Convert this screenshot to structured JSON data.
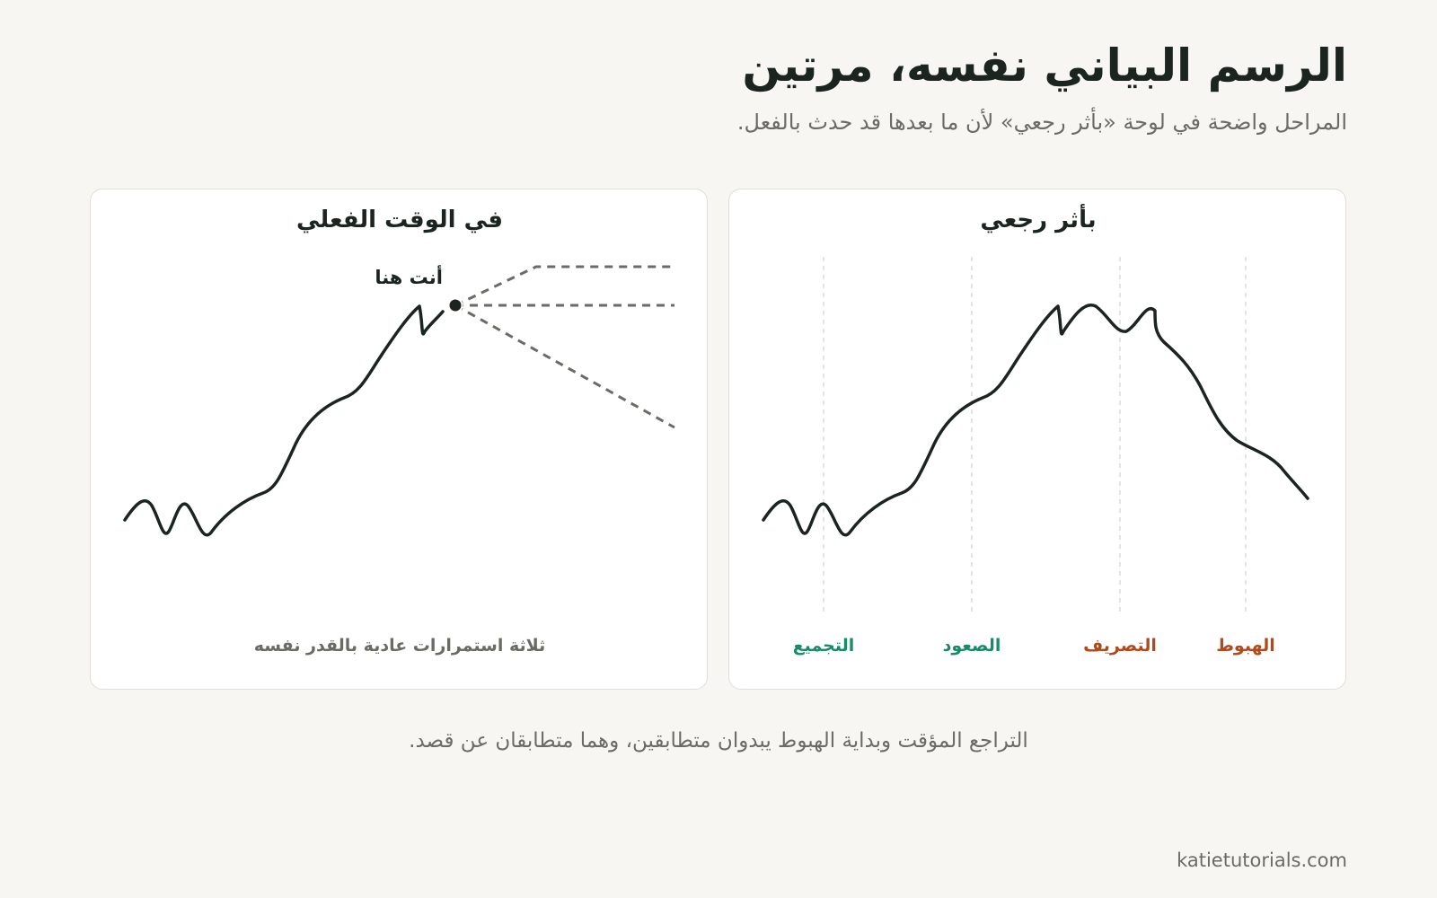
{
  "header": {
    "title": "الرسم البياني نفسه، مرتين",
    "subtitle": "المراحل واضحة في لوحة «بأثر رجعي» لأن ما بعدها قد حدث بالفعل."
  },
  "panels": {
    "hindsight": {
      "title": "بأثر رجعي",
      "phases": [
        {
          "label": "التجميع",
          "color": "#1a8a6a"
        },
        {
          "label": "الصعود",
          "color": "#1a8a6a"
        },
        {
          "label": "التصريف",
          "color": "#b04a1c"
        },
        {
          "label": "الهبوط",
          "color": "#b04a1c"
        }
      ]
    },
    "realtime": {
      "title": "في الوقت الفعلي",
      "marker_label": "أنت هنا",
      "caption": "ثلاثة استمرارات عادية بالقدر نفسه"
    }
  },
  "footer": {
    "note": "التراجع المؤقت وبداية الهبوط يبدوان متطابقين، وهما متطابقان عن قصد.",
    "source": "katietutorials.com"
  },
  "colors": {
    "background": "#f7f6f2",
    "line": "#1c2420",
    "accumulation_markup": "#1a8a6a",
    "distribution_markdown": "#b04a1c",
    "dashed_paths": "#6b6b66",
    "muted_text": "#6b6b66"
  }
}
